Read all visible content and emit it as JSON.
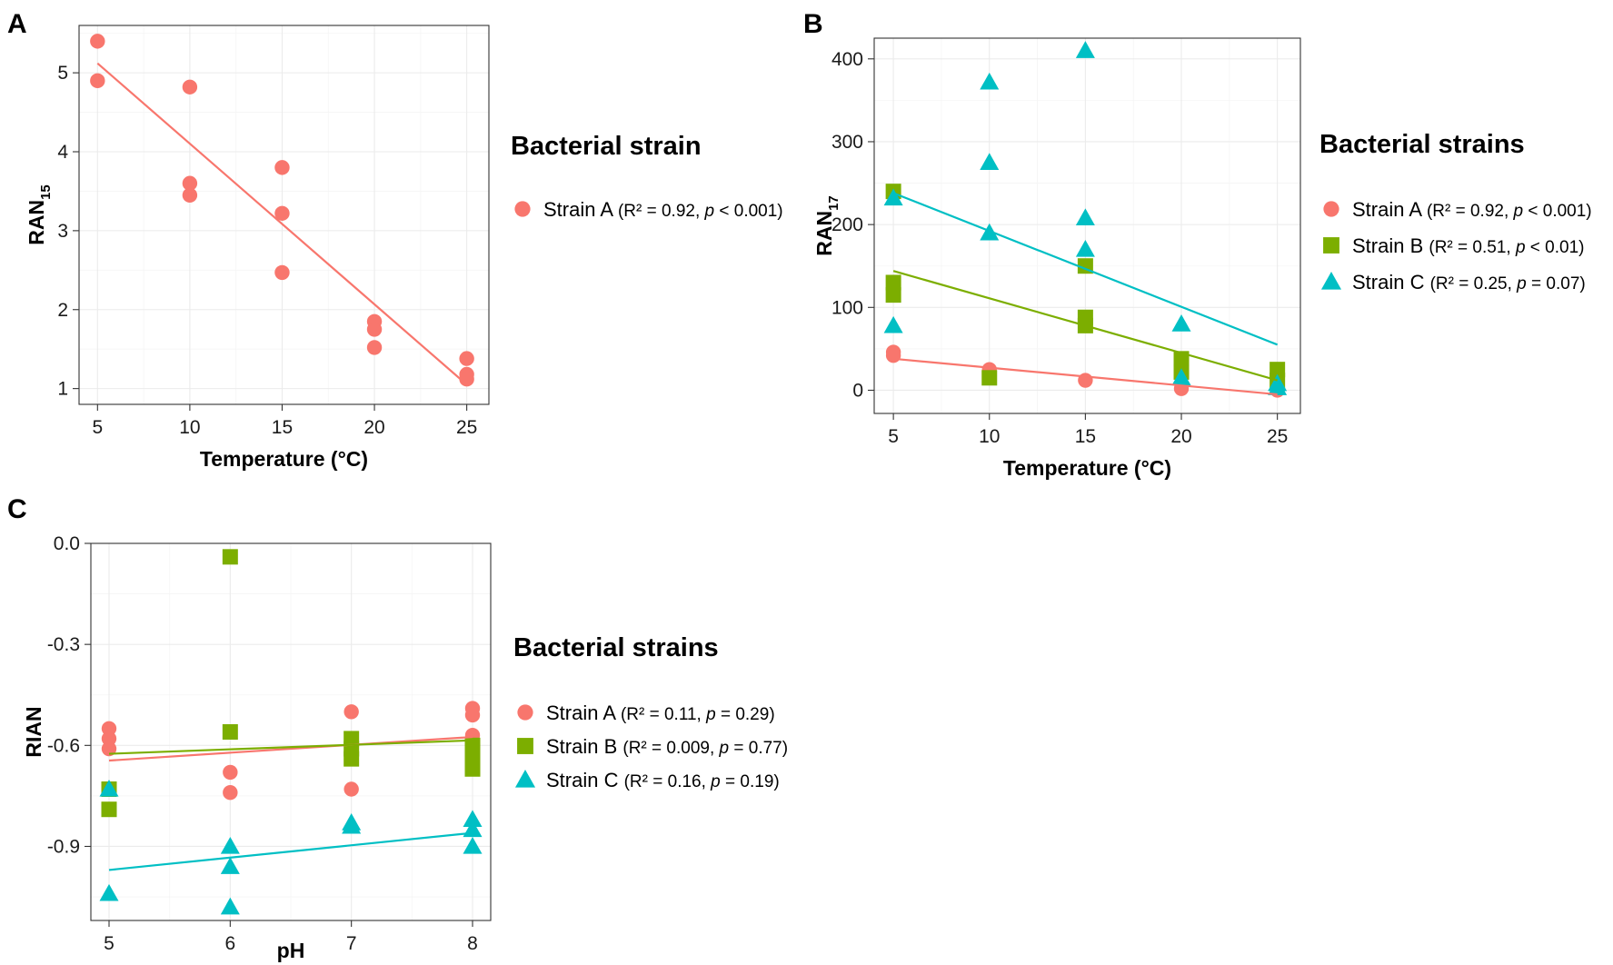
{
  "colors": {
    "strain_a": "#F8766D",
    "strain_b": "#7CAE00",
    "strain_c": "#00BFC4"
  },
  "chart_data": [
    {
      "panel": "A",
      "type": "scatter",
      "title": "",
      "xlabel": "Temperature (°C)",
      "ylabel_main": "RAN",
      "ylabel_sub": "15",
      "xlim": [
        4,
        26.2
      ],
      "ylim": [
        0.8,
        5.6
      ],
      "xticks": [
        5,
        10,
        15,
        20,
        25
      ],
      "yticks": [
        1,
        2,
        3,
        4,
        5
      ],
      "ytick_labels": [
        "1",
        "2",
        "3",
        "4",
        "5"
      ],
      "legend_title": "Bacterial strain",
      "series": [
        {
          "name": "Strain A",
          "stats": "(R² = 0.92, p < 0.001)",
          "stat_parts": [
            {
              "text": "(R² = 0.92, ",
              "italic": false
            },
            {
              "text": "p",
              "italic": true
            },
            {
              "text": " < 0.001)",
              "italic": false
            }
          ],
          "color": "#F8766D",
          "shape": "circle",
          "x": [
            5,
            5,
            10,
            10,
            10,
            15,
            15,
            15,
            20,
            20,
            20,
            25,
            25,
            25
          ],
          "y": [
            5.4,
            4.9,
            4.82,
            3.6,
            3.45,
            3.8,
            3.22,
            2.47,
            1.85,
            1.75,
            1.52,
            1.38,
            1.18,
            1.12
          ],
          "fit": [
            [
              5,
              5.12
            ],
            [
              25,
              1.05
            ]
          ]
        }
      ]
    },
    {
      "panel": "B",
      "type": "scatter",
      "title": "",
      "xlabel": "Temperature (°C)",
      "ylabel_main": "RAN",
      "ylabel_sub": "17",
      "xlim": [
        4,
        26.2
      ],
      "ylim": [
        -28,
        425
      ],
      "xticks": [
        5,
        10,
        15,
        20,
        25
      ],
      "yticks": [
        0,
        100,
        200,
        300,
        400
      ],
      "ytick_labels": [
        "0",
        "100",
        "200",
        "300",
        "400"
      ],
      "legend_title": "Bacterial strains",
      "series": [
        {
          "name": "Strain A",
          "stats": "(R² = 0.92, p < 0.001)",
          "stat_parts": [
            {
              "text": "(R² = 0.92, ",
              "italic": false
            },
            {
              "text": "p",
              "italic": true
            },
            {
              "text": " < 0.001)",
              "italic": false
            }
          ],
          "color": "#F8766D",
          "shape": "circle",
          "x": [
            5,
            5,
            10,
            15,
            20,
            25
          ],
          "y": [
            46,
            42,
            25,
            12,
            2,
            0
          ],
          "fit": [
            [
              5,
              38
            ],
            [
              25,
              -5
            ]
          ]
        },
        {
          "name": "Strain B",
          "stats": "(R² = 0.51, p < 0.01)",
          "stat_parts": [
            {
              "text": "(R² = 0.51, ",
              "italic": false
            },
            {
              "text": "p",
              "italic": true
            },
            {
              "text": " < 0.01)",
              "italic": false
            }
          ],
          "color": "#7CAE00",
          "shape": "square",
          "x": [
            5,
            5,
            5,
            10,
            15,
            15,
            15,
            20,
            20,
            25,
            25
          ],
          "y": [
            240,
            130,
            115,
            15,
            150,
            88,
            78,
            38,
            22,
            25,
            12
          ],
          "fit": [
            [
              5,
              144
            ],
            [
              25,
              12
            ]
          ]
        },
        {
          "name": "Strain C",
          "stats": "(R² = 0.25, p = 0.07)",
          "stat_parts": [
            {
              "text": "(R² = 0.25, ",
              "italic": false
            },
            {
              "text": "p",
              "italic": true
            },
            {
              "text": " = 0.07)",
              "italic": false
            }
          ],
          "color": "#00BFC4",
          "shape": "triangle",
          "x": [
            5,
            5,
            10,
            10,
            10,
            15,
            15,
            15,
            20,
            20,
            25,
            25
          ],
          "y": [
            232,
            78,
            372,
            275,
            190,
            410,
            208,
            170,
            80,
            15,
            8,
            3
          ],
          "fit": [
            [
              5,
              238
            ],
            [
              25,
              55
            ]
          ]
        }
      ]
    },
    {
      "panel": "C",
      "type": "scatter",
      "title": "",
      "xlabel": "pH",
      "ylabel_main": "RIAN",
      "ylabel_sub": "",
      "xlim": [
        4.85,
        8.15
      ],
      "ylim": [
        -1.12,
        0.0
      ],
      "xticks": [
        5,
        6,
        7,
        8
      ],
      "yticks": [
        0.0,
        -0.3,
        -0.6,
        -0.9
      ],
      "ytick_labels": [
        "0.0",
        "-0.3",
        "-0.6",
        "-0.9"
      ],
      "legend_title": "Bacterial strains",
      "series": [
        {
          "name": "Strain A",
          "stats": "(R² = 0.11, p = 0.29)",
          "stat_parts": [
            {
              "text": "(R² = 0.11, ",
              "italic": false
            },
            {
              "text": "p",
              "italic": true
            },
            {
              "text": " = 0.29)",
              "italic": false
            }
          ],
          "color": "#F8766D",
          "shape": "circle",
          "x": [
            5,
            5,
            5,
            6,
            6,
            7,
            7,
            8,
            8,
            8
          ],
          "y": [
            -0.55,
            -0.58,
            -0.61,
            -0.68,
            -0.74,
            -0.5,
            -0.73,
            -0.49,
            -0.51,
            -0.57
          ],
          "fit": [
            [
              5,
              -0.645
            ],
            [
              8,
              -0.575
            ]
          ]
        },
        {
          "name": "Strain B",
          "stats": "(R² = 0.009, p = 0.77)",
          "stat_parts": [
            {
              "text": "(R² = 0.009, ",
              "italic": false
            },
            {
              "text": "p",
              "italic": true
            },
            {
              "text": " = 0.77)",
              "italic": false
            }
          ],
          "color": "#7CAE00",
          "shape": "square",
          "x": [
            5,
            5,
            6,
            6,
            7,
            7,
            7,
            8,
            8,
            8
          ],
          "y": [
            -0.73,
            -0.79,
            -0.04,
            -0.56,
            -0.58,
            -0.61,
            -0.64,
            -0.6,
            -0.64,
            -0.67
          ],
          "fit": [
            [
              5,
              -0.625
            ],
            [
              8,
              -0.585
            ]
          ]
        },
        {
          "name": "Strain C",
          "stats": "(R² = 0.16, p = 0.19)",
          "stat_parts": [
            {
              "text": "(R² = 0.16, ",
              "italic": false
            },
            {
              "text": "p",
              "italic": true
            },
            {
              "text": " = 0.19)",
              "italic": false
            }
          ],
          "color": "#00BFC4",
          "shape": "triangle",
          "x": [
            5,
            5,
            6,
            6,
            6,
            7,
            7,
            8,
            8,
            8
          ],
          "y": [
            -0.73,
            -1.04,
            -0.9,
            -0.96,
            -1.08,
            -0.83,
            -0.84,
            -0.82,
            -0.85,
            -0.9
          ],
          "fit": [
            [
              5,
              -0.97
            ],
            [
              8,
              -0.86
            ]
          ]
        }
      ]
    }
  ]
}
